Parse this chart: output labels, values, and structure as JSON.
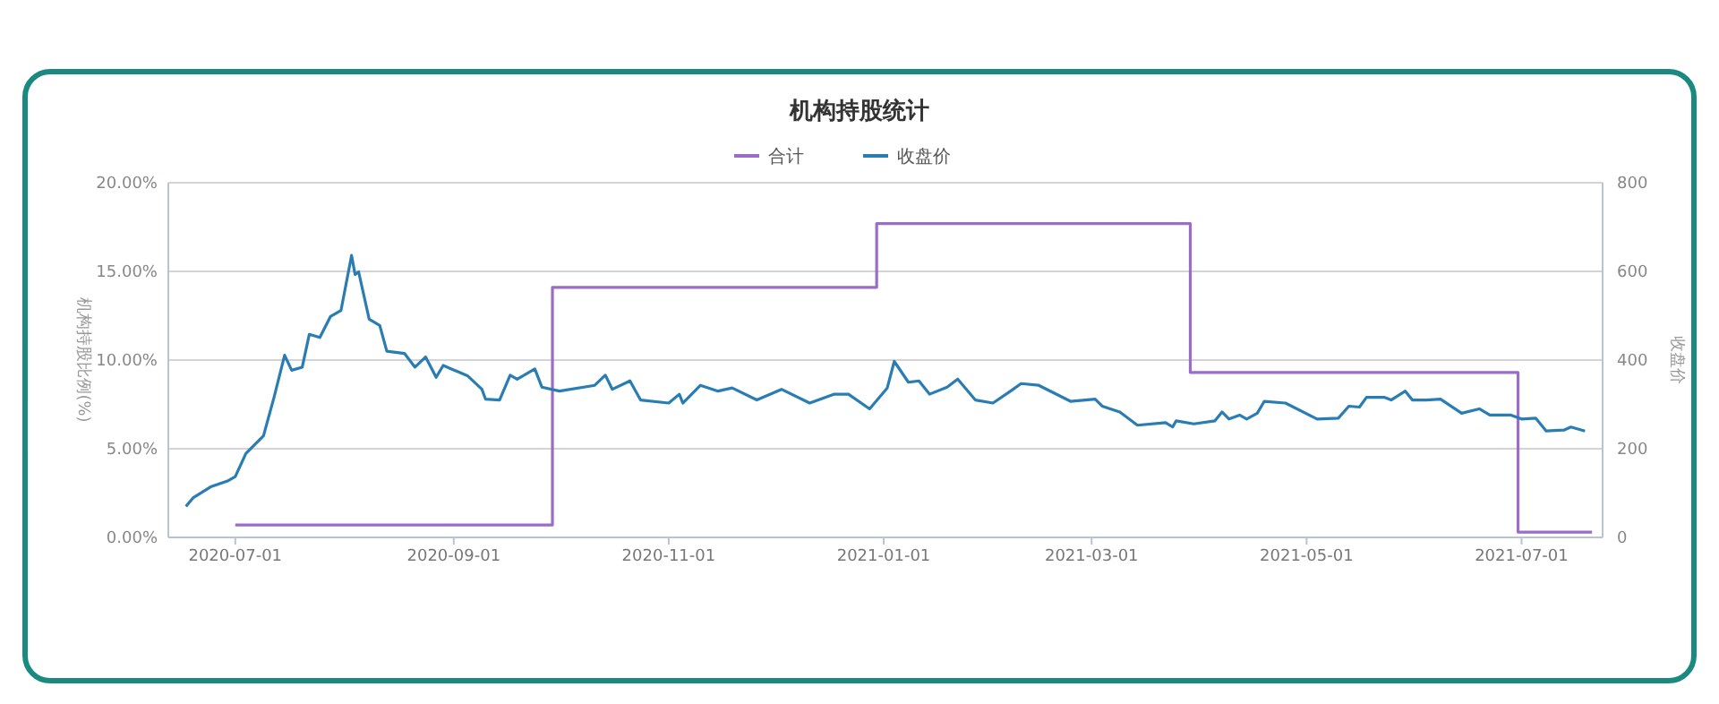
{
  "chart_data": {
    "type": "line",
    "title": "机构持股统计",
    "ylabel": "机构持股比例(%)",
    "y2label": "收盘价",
    "xlim": [
      "2020-06-12",
      "2021-07-24"
    ],
    "xticks": [
      "2020-07-01",
      "2020-09-01",
      "2020-11-01",
      "2021-01-01",
      "2021-03-01",
      "2021-05-01",
      "2021-07-01"
    ],
    "ylim": [
      0,
      20
    ],
    "yticks": [
      {
        "value": 0,
        "label": "0.00%"
      },
      {
        "value": 5,
        "label": "5.00%"
      },
      {
        "value": 10,
        "label": "10.00%"
      },
      {
        "value": 15,
        "label": "15.00%"
      },
      {
        "value": 20,
        "label": "20.00%"
      }
    ],
    "y2lim": [
      0,
      800
    ],
    "y2ticks": [
      0,
      200,
      400,
      600,
      800
    ],
    "grid": "y",
    "legend": "top",
    "series": [
      {
        "name": "合计",
        "type": "step",
        "color": "#9b6cc8",
        "x": [
          "2020-07-01",
          "2020-09-29",
          "2020-12-30",
          "2021-03-29",
          "2021-06-30",
          "2021-07-21"
        ],
        "values": [
          0.7,
          14.1,
          17.7,
          9.3,
          0.3,
          0.3
        ]
      },
      {
        "name": "收盘价",
        "axis": "y2",
        "color": "#2a7db3",
        "x": [
          "2020-06-17",
          "2020-06-19",
          "2020-06-24",
          "2020-06-29",
          "2020-07-01",
          "2020-07-04",
          "2020-07-09",
          "2020-07-12",
          "2020-07-15",
          "2020-07-17",
          "2020-07-20",
          "2020-07-22",
          "2020-07-25",
          "2020-07-28",
          "2020-07-31",
          "2020-08-03",
          "2020-08-04",
          "2020-08-05",
          "2020-08-08",
          "2020-08-11",
          "2020-08-13",
          "2020-08-18",
          "2020-08-21",
          "2020-08-24",
          "2020-08-27",
          "2020-08-29",
          "2020-09-05",
          "2020-09-09",
          "2020-09-10",
          "2020-09-14",
          "2020-09-17",
          "2020-09-19",
          "2020-09-24",
          "2020-09-26",
          "2020-10-01",
          "2020-10-11",
          "2020-10-14",
          "2020-10-16",
          "2020-10-21",
          "2020-10-24",
          "2020-11-01",
          "2020-11-04",
          "2020-11-05",
          "2020-11-10",
          "2020-11-15",
          "2020-11-19",
          "2020-11-26",
          "2020-12-03",
          "2020-12-11",
          "2020-12-18",
          "2020-12-22",
          "2020-12-28",
          "2021-01-02",
          "2021-01-04",
          "2021-01-08",
          "2021-01-11",
          "2021-01-14",
          "2021-01-19",
          "2021-01-22",
          "2021-01-27",
          "2021-02-01",
          "2021-02-06",
          "2021-02-09",
          "2021-02-14",
          "2021-02-23",
          "2021-03-02",
          "2021-03-04",
          "2021-03-09",
          "2021-03-14",
          "2021-03-22",
          "2021-03-24",
          "2021-03-25",
          "2021-03-30",
          "2021-04-05",
          "2021-04-07",
          "2021-04-09",
          "2021-04-12",
          "2021-04-14",
          "2021-04-17",
          "2021-04-19",
          "2021-04-25",
          "2021-05-04",
          "2021-05-10",
          "2021-05-13",
          "2021-05-16",
          "2021-05-18",
          "2021-05-23",
          "2021-05-25",
          "2021-05-29",
          "2021-05-31",
          "2021-06-04",
          "2021-06-08",
          "2021-06-14",
          "2021-06-19",
          "2021-06-22",
          "2021-06-28",
          "2021-07-01",
          "2021-07-05",
          "2021-07-08",
          "2021-07-13",
          "2021-07-15",
          "2021-07-19"
        ],
        "values": [
          70,
          89,
          114,
          128,
          137,
          189,
          229,
          316,
          411,
          377,
          384,
          458,
          451,
          498,
          512,
          636,
          593,
          599,
          492,
          478,
          420,
          415,
          384,
          407,
          361,
          388,
          364,
          334,
          312,
          310,
          366,
          357,
          380,
          339,
          330,
          343,
          366,
          334,
          353,
          310,
          303,
          323,
          303,
          343,
          330,
          337,
          310,
          334,
          303,
          323,
          323,
          290,
          337,
          397,
          350,
          353,
          323,
          339,
          357,
          310,
          303,
          330,
          347,
          343,
          307,
          312,
          296,
          283,
          253,
          259,
          249,
          263,
          256,
          263,
          283,
          267,
          276,
          267,
          280,
          307,
          303,
          267,
          269,
          296,
          294,
          316,
          316,
          310,
          330,
          310,
          310,
          312,
          280,
          290,
          276,
          276,
          267,
          269,
          240,
          242,
          249,
          240
        ]
      }
    ]
  }
}
